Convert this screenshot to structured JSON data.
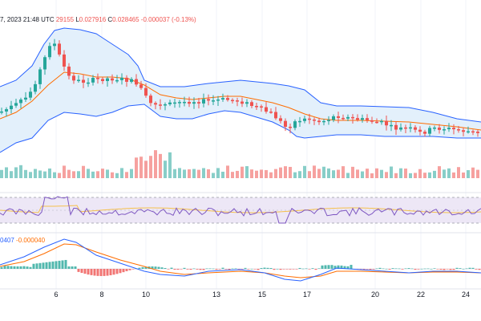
{
  "header": {
    "date_fragment": "7, 2023 21:48 UTC",
    "h_value": "29155",
    "l_label": "L",
    "l_value": "0.027916",
    "c_label": "C",
    "c_value": "0.028465",
    "change": "-0.000037 (-0.13%)"
  },
  "macd_header": {
    "macd_fragment": "0407",
    "signal": "-0.000040"
  },
  "colors": {
    "up": "#26a69a",
    "down": "#ef5350",
    "bollinger_band": "#2962ff",
    "bollinger_fill": "#e3f0fb",
    "bollinger_basis": "#ff6d00",
    "rsi_line": "#7e57c2",
    "rsi_ma": "#f5c04c",
    "rsi_band": "#ede7f6",
    "macd_line": "#2962ff",
    "signal_line": "#ff6d00"
  },
  "chart_data": {
    "type": "candlestick",
    "x_ticks": [
      "6",
      "8",
      "10",
      "13",
      "15",
      "17",
      "20",
      "22",
      "24"
    ],
    "price": {
      "note": "values read approximately off an unlabeled price scale",
      "close_last": 0.028465,
      "low": 0.027916
    },
    "panels": [
      "price with bollinger bands",
      "volume",
      "RSI",
      "MACD"
    ]
  }
}
